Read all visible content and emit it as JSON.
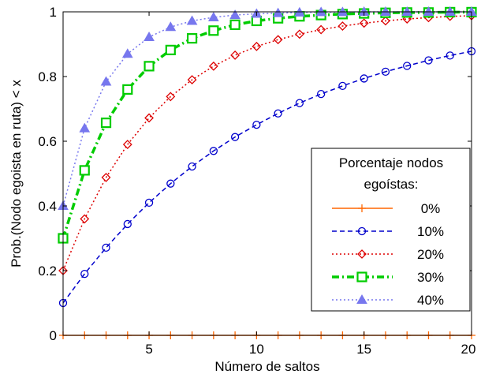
{
  "chart_data": {
    "type": "line",
    "xlabel": "Número de saltos",
    "ylabel": "Prob.(Nodo egoista en ruta) < x",
    "xlim": [
      1,
      20
    ],
    "ylim": [
      0,
      1
    ],
    "xticks": [
      5,
      10,
      15,
      20
    ],
    "yticks": [
      0,
      0.2,
      0.4,
      0.6,
      0.8,
      1
    ],
    "ytick_labels": [
      "0",
      "0.2",
      "0.4",
      "0.6",
      "0.8",
      "1"
    ],
    "grid": false,
    "legend": {
      "title_lines": [
        "Porcentaje nodos",
        "egoístas:"
      ],
      "position": "lower-right"
    },
    "x": [
      1,
      2,
      3,
      4,
      5,
      6,
      7,
      8,
      9,
      10,
      11,
      12,
      13,
      14,
      15,
      16,
      17,
      18,
      19,
      20
    ],
    "series": [
      {
        "name": "0%",
        "color": "#FF6600",
        "dash": "solid",
        "marker": "plus",
        "values": [
          0,
          0,
          0,
          0,
          0,
          0,
          0,
          0,
          0,
          0,
          0,
          0,
          0,
          0,
          0,
          0,
          0,
          0,
          0,
          0
        ]
      },
      {
        "name": "10%",
        "color": "#0000CC",
        "dash": "dashed",
        "marker": "circle",
        "values": [
          0.1,
          0.19,
          0.271,
          0.344,
          0.41,
          0.469,
          0.522,
          0.57,
          0.613,
          0.651,
          0.686,
          0.718,
          0.746,
          0.771,
          0.794,
          0.815,
          0.833,
          0.85,
          0.865,
          0.878
        ]
      },
      {
        "name": "20%",
        "color": "#DD0000",
        "dash": "dotted",
        "marker": "diamond",
        "values": [
          0.2,
          0.36,
          0.488,
          0.59,
          0.672,
          0.738,
          0.79,
          0.832,
          0.866,
          0.893,
          0.914,
          0.931,
          0.945,
          0.956,
          0.965,
          0.972,
          0.978,
          0.982,
          0.986,
          0.988
        ]
      },
      {
        "name": "30%",
        "color": "#00CC00",
        "dash": "dashdot",
        "marker": "square",
        "values": [
          0.3,
          0.51,
          0.657,
          0.76,
          0.832,
          0.882,
          0.918,
          0.942,
          0.96,
          0.972,
          0.98,
          0.986,
          0.99,
          0.993,
          0.995,
          0.997,
          0.998,
          0.998,
          0.999,
          0.999
        ]
      },
      {
        "name": "40%",
        "color": "#7777EE",
        "dash": "dotted",
        "marker": "triangle",
        "values": [
          0.4,
          0.64,
          0.784,
          0.87,
          0.922,
          0.953,
          0.972,
          0.983,
          0.99,
          0.994,
          0.996,
          0.998,
          0.999,
          0.999,
          1,
          1,
          1,
          1,
          1,
          1
        ]
      }
    ]
  }
}
